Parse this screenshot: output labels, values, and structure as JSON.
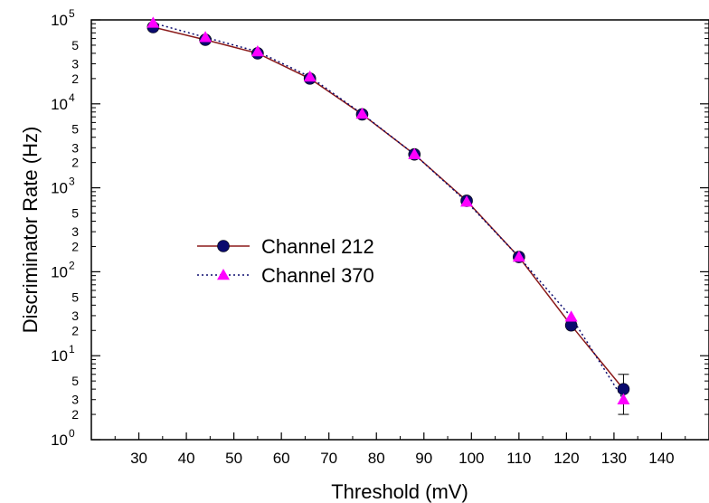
{
  "chart_data": {
    "type": "line",
    "xlabel": "Threshold (mV)",
    "ylabel": "Discriminator Rate (Hz)",
    "xlim": [
      20,
      150
    ],
    "ylim": [
      1,
      100000
    ],
    "y_scale": "log",
    "grid": false,
    "legend_position": "center-left",
    "x_ticks": [
      30,
      40,
      50,
      60,
      70,
      80,
      90,
      100,
      110,
      120,
      130,
      140
    ],
    "y_major_ticks": [
      1,
      10,
      100,
      1000,
      10000,
      100000
    ],
    "y_major_tick_labels": [
      {
        "base": "10",
        "exp": "0"
      },
      {
        "base": "10",
        "exp": "1"
      },
      {
        "base": "10",
        "exp": "2"
      },
      {
        "base": "10",
        "exp": "3"
      },
      {
        "base": "10",
        "exp": "4"
      },
      {
        "base": "10",
        "exp": "5"
      }
    ],
    "y_minor_labels": [
      "2",
      "3",
      "5"
    ],
    "series": [
      {
        "name": "Channel 212",
        "color": "#8b1a1a",
        "marker_color": "#0a0a6e",
        "marker": "circle",
        "line_style": "solid",
        "x": [
          33,
          44,
          55,
          66,
          77,
          88,
          99,
          110,
          121,
          132
        ],
        "y": [
          82000,
          58000,
          40000,
          20000,
          7500,
          2500,
          700,
          150,
          23,
          4
        ],
        "y_err_low": [
          null,
          null,
          null,
          null,
          null,
          null,
          null,
          null,
          null,
          2
        ],
        "y_err_high": [
          null,
          null,
          null,
          null,
          null,
          null,
          null,
          null,
          null,
          6
        ]
      },
      {
        "name": "Channel 370",
        "color": "#0a0a6e",
        "marker_color": "#ff00ff",
        "marker": "triangle",
        "line_style": "dotted",
        "x": [
          33,
          44,
          55,
          66,
          77,
          88,
          99,
          110,
          121,
          132
        ],
        "y": [
          92000,
          62000,
          42000,
          21000,
          7600,
          2500,
          680,
          150,
          29,
          3
        ]
      }
    ]
  }
}
